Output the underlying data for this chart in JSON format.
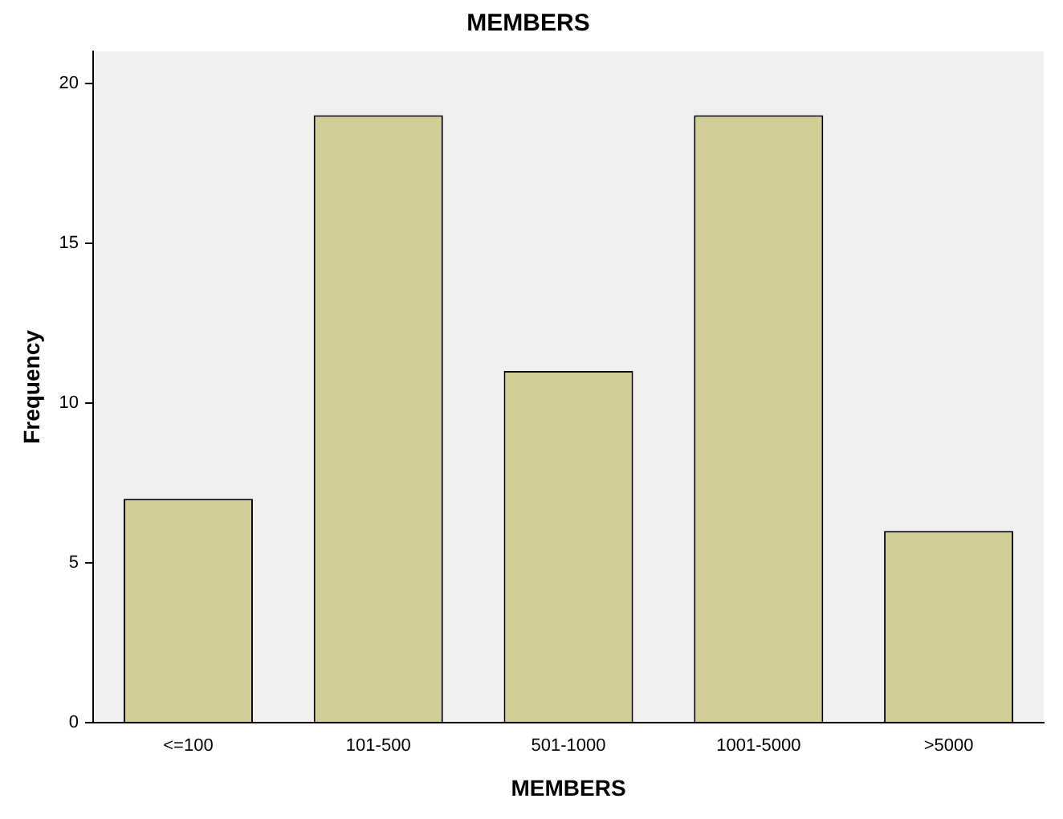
{
  "chart_data": {
    "type": "bar",
    "title": "MEMBERS",
    "xlabel": "MEMBERS",
    "ylabel": "Frequency",
    "categories": [
      "<=100",
      "101-500",
      "501-1000",
      "1001-5000",
      ">5000"
    ],
    "values": [
      7,
      19,
      11,
      19,
      6
    ],
    "color": "#d3ce97",
    "ylim": [
      0,
      21
    ],
    "yticks": [
      0,
      5,
      10,
      15,
      20
    ],
    "grid": false,
    "legend": false
  }
}
